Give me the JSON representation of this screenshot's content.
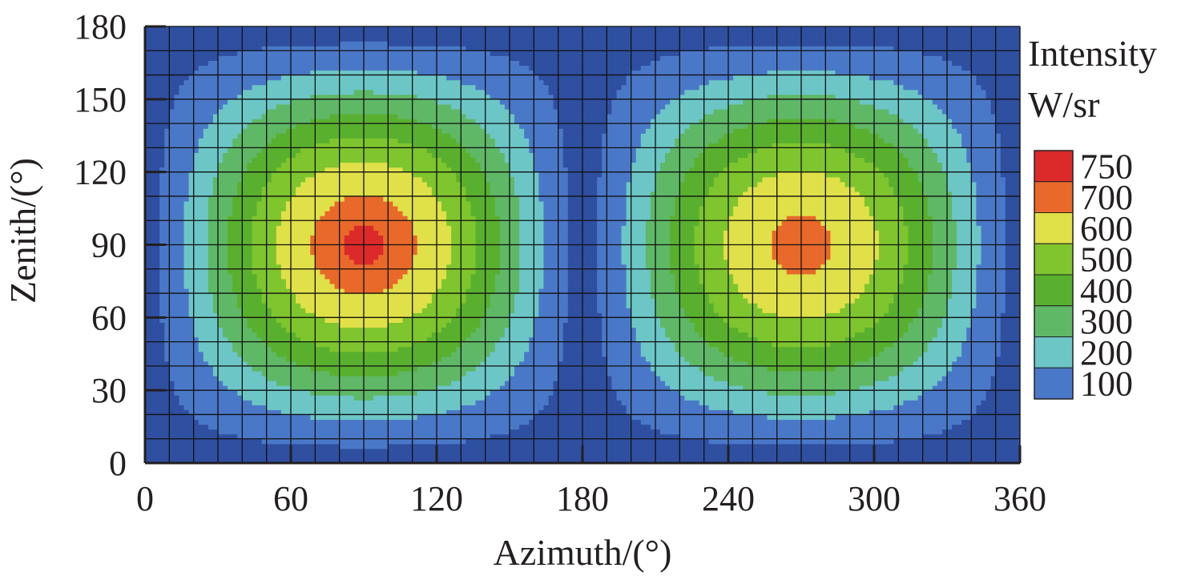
{
  "chart_data": {
    "type": "heatmap",
    "subtype": "filled-contour",
    "title": "",
    "xlabel": "Azimuth/(°)",
    "ylabel": "Zenith/(°)",
    "xlim": [
      0,
      360
    ],
    "ylim": [
      0,
      180
    ],
    "xticks": [
      0,
      60,
      120,
      180,
      240,
      300,
      360
    ],
    "yticks": [
      0,
      30,
      60,
      90,
      120,
      150,
      180
    ],
    "grid": true,
    "grid_spacing_deg": 10,
    "legend": {
      "title": "Intensity",
      "units": "W/sr",
      "placement": "right",
      "levels": [
        100,
        200,
        300,
        400,
        500,
        600,
        700,
        750
      ],
      "colors": [
        "#2f4fa0",
        "#4a78c8",
        "#6cc6c6",
        "#5fb866",
        "#59b02e",
        "#7ec52e",
        "#e0e048",
        "#e8692a",
        "#dc2a2a"
      ]
    },
    "peaks": [
      {
        "azimuth": 90,
        "zenith": 90,
        "max_intensity": 760
      },
      {
        "azimuth": 270,
        "zenith": 90,
        "max_intensity": 720
      }
    ],
    "minima": [
      {
        "azimuth": 0,
        "intensity": 100
      },
      {
        "azimuth": 180,
        "intensity": 100
      },
      {
        "azimuth": 360,
        "intensity": 100
      }
    ]
  }
}
